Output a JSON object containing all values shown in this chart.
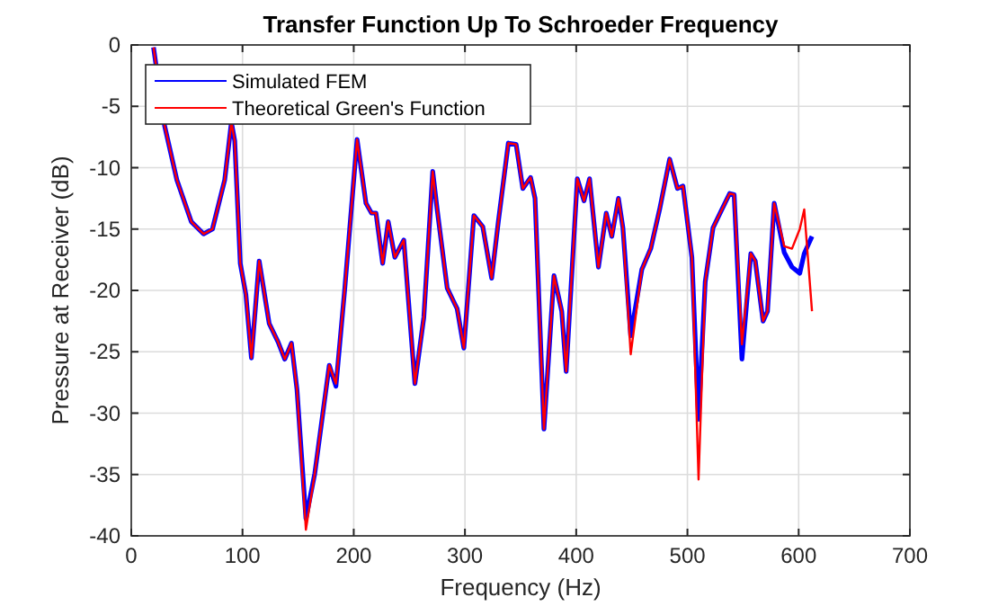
{
  "chart_data": {
    "type": "line",
    "title": "Transfer Function Up To Schroeder Frequency",
    "xlabel": "Frequency (Hz)",
    "ylabel": "Pressure at Receiver (dB)",
    "x": [
      20,
      30,
      41,
      54,
      65,
      73,
      84,
      90,
      93,
      98,
      103,
      108,
      115,
      124,
      132,
      138,
      144,
      149,
      157,
      165,
      178,
      184,
      192,
      203,
      211,
      216,
      220,
      226,
      231,
      237,
      245,
      255,
      263,
      271,
      275,
      284,
      293,
      299,
      308,
      316,
      324,
      330,
      339,
      346,
      352,
      359,
      363,
      371,
      380,
      387,
      391,
      401,
      407,
      412,
      420,
      427,
      432,
      438,
      442,
      449,
      459,
      467,
      475,
      484,
      491,
      496,
      504,
      510,
      516,
      523,
      531,
      538,
      542,
      549,
      557,
      561,
      568,
      572,
      578,
      587,
      594,
      601,
      605,
      612
    ],
    "series": [
      {
        "name": "Simulated FEM",
        "color": "#0000ff",
        "values": [
          -0.2,
          -6.6,
          -11,
          -14.4,
          -15.4,
          -15,
          -11,
          -6.3,
          -7.8,
          -17.8,
          -20.3,
          -25.5,
          -17.6,
          -22.7,
          -24.2,
          -25.6,
          -24.3,
          -28.1,
          -38.6,
          -34.9,
          -26.1,
          -27.8,
          -19.8,
          -7.7,
          -12.9,
          -13.7,
          -13.7,
          -17.8,
          -14.4,
          -17.3,
          -15.9,
          -27.6,
          -22.2,
          -10.3,
          -13.4,
          -19.8,
          -21.5,
          -24.7,
          -13.9,
          -14.8,
          -19,
          -14.4,
          -8,
          -8.1,
          -11.7,
          -10.8,
          -12.5,
          -31.3,
          -18.8,
          -21.7,
          -26.6,
          -10.9,
          -12.7,
          -10.9,
          -18.1,
          -13.7,
          -15.6,
          -12.5,
          -14.9,
          -23.7,
          -18.3,
          -16.6,
          -13.4,
          -9.3,
          -11.7,
          -11.5,
          -17.3,
          -30.5,
          -19.3,
          -14.9,
          -13.4,
          -12.1,
          -12.2,
          -25.6,
          -17,
          -17.6,
          -22.5,
          -21.7,
          -12.9,
          -16.9,
          -18.1,
          -18.6,
          -17,
          -15.6
        ]
      },
      {
        "name": "Theoretical Green's Function",
        "color": "#ff0000",
        "values": [
          -0.2,
          -6.6,
          -11,
          -14.4,
          -15.4,
          -15,
          -11,
          -6.3,
          -7.8,
          -17.8,
          -20.3,
          -25.5,
          -17.6,
          -22.7,
          -24.2,
          -25.6,
          -24.3,
          -28.1,
          -39.5,
          -34.9,
          -26.1,
          -27.6,
          -19.8,
          -7.7,
          -12.9,
          -13.7,
          -13.7,
          -17.8,
          -14.4,
          -17.3,
          -15.9,
          -27.6,
          -22.2,
          -10.3,
          -13.4,
          -19.8,
          -21.5,
          -24.7,
          -13.9,
          -14.8,
          -19,
          -14.4,
          -8,
          -8.1,
          -11.7,
          -10.8,
          -12.5,
          -31.3,
          -18.8,
          -21.7,
          -26.6,
          -10.9,
          -12.7,
          -10.9,
          -18.1,
          -13.7,
          -15.6,
          -12.5,
          -14.9,
          -25.2,
          -18.3,
          -16.6,
          -13.4,
          -9.3,
          -11.7,
          -11.5,
          -17.3,
          -35.4,
          -19.3,
          -14.9,
          -13.4,
          -12.1,
          -12.2,
          -24.4,
          -17,
          -17.6,
          -22.5,
          -21.7,
          -12.9,
          -16.4,
          -16.6,
          -15,
          -13.4,
          -21.7
        ]
      }
    ],
    "xlim": [
      0,
      700
    ],
    "xticks": [
      0,
      100,
      200,
      300,
      400,
      500,
      600,
      700
    ],
    "ylim": [
      -40,
      0
    ],
    "yticks": [
      -40,
      -35,
      -30,
      -25,
      -20,
      -15,
      -10,
      -5,
      0
    ],
    "grid": true,
    "legend": "top left"
  }
}
